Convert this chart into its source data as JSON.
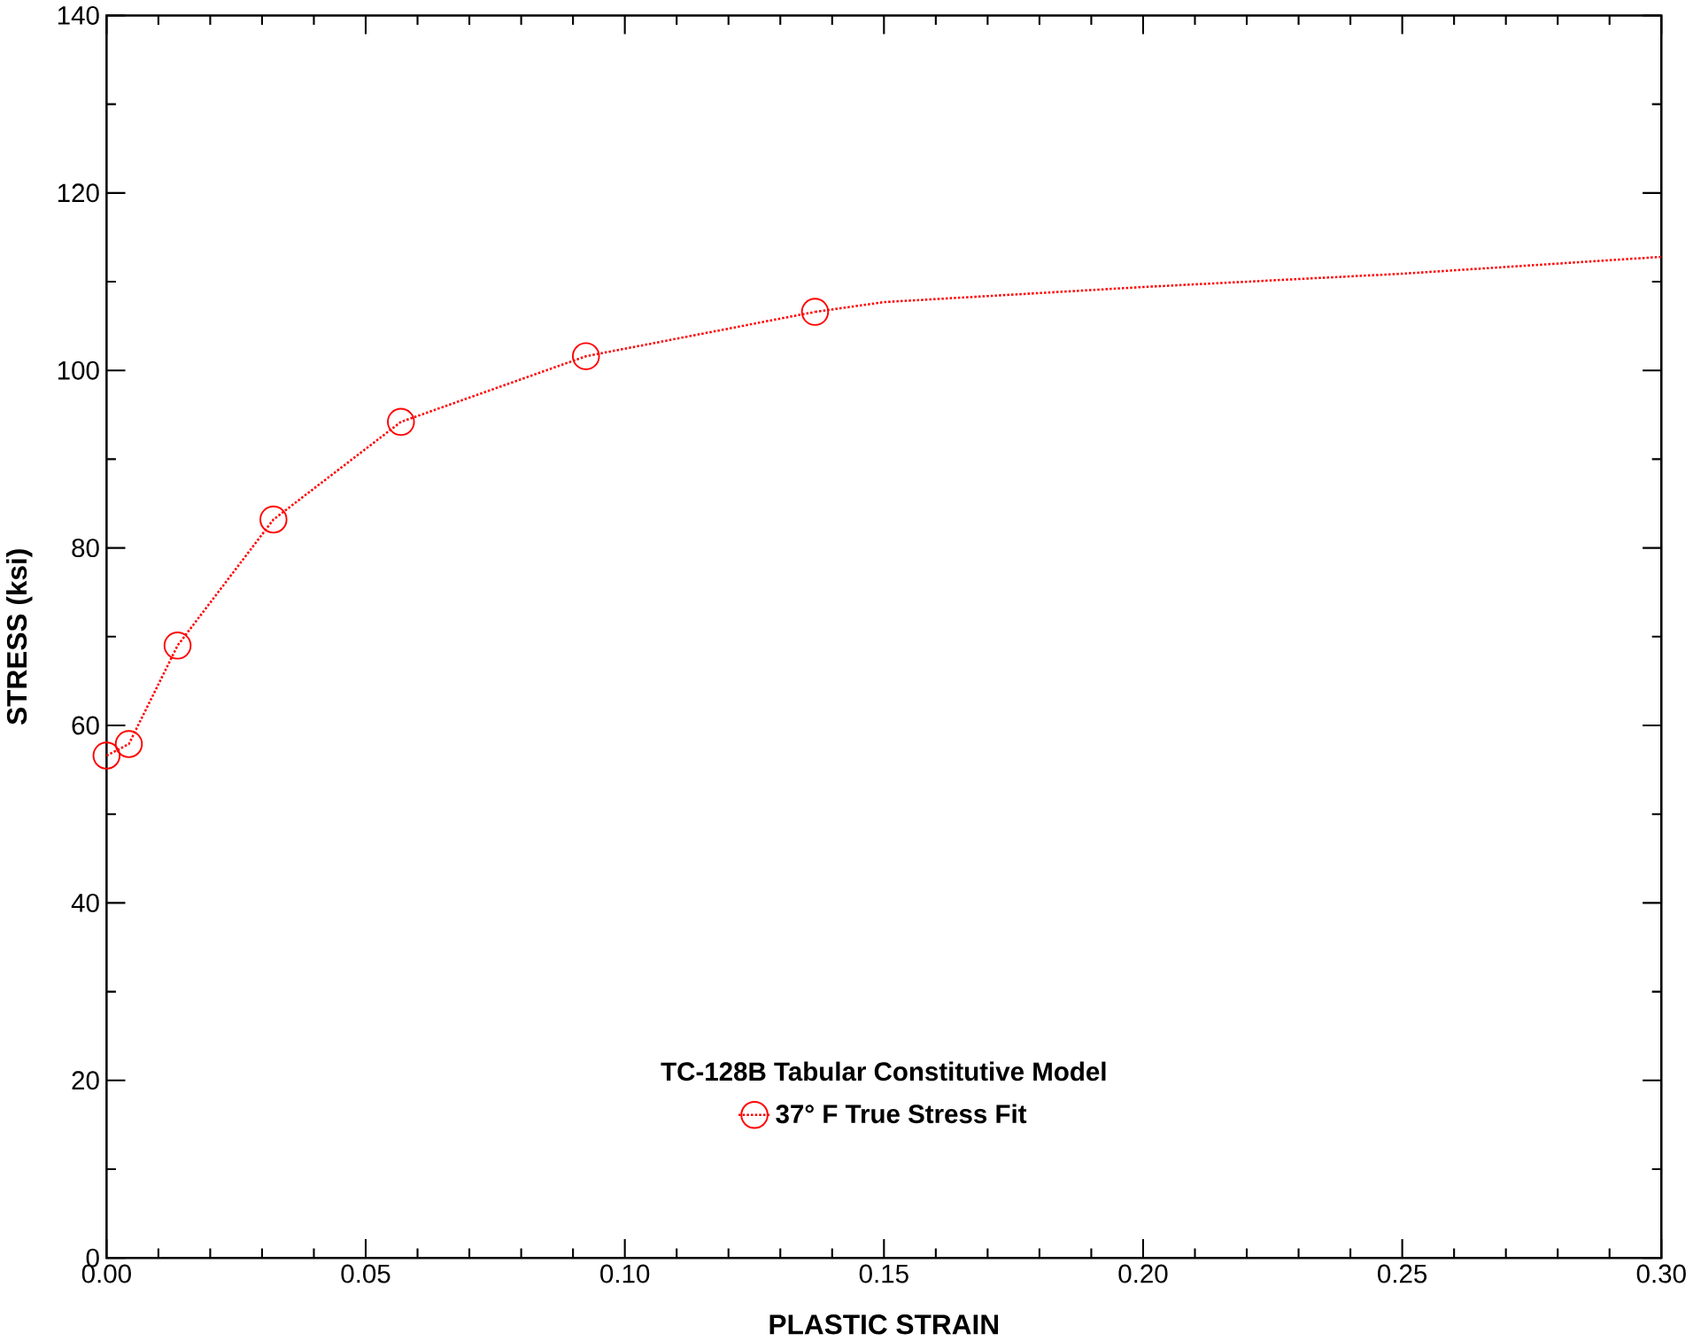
{
  "chart_data": {
    "type": "line",
    "xlabel": "PLASTIC STRAIN",
    "ylabel": "STRESS (ksi)",
    "legend_title": "TC-128B Tabular Constitutive Model",
    "series": [
      {
        "name": "37° F True Stress Fit",
        "color": "#ff0000",
        "x": [
          0,
          0.0043,
          0.0137,
          0.0322,
          0.0568,
          0.0925,
          0.1367
        ],
        "values": [
          56.6,
          57.9,
          69.0,
          83.2,
          94.2,
          101.6,
          106.6
        ]
      },
      {
        "color": "#ff0000",
        "marker": "none",
        "x": [
          0.1367,
          0.15,
          0.2,
          0.25,
          0.3
        ],
        "values": [
          106.6,
          107.7,
          109.4,
          110.9,
          112.8
        ]
      }
    ],
    "xlim": [
      0,
      0.3
    ],
    "ylim": [
      0,
      140
    ],
    "xticks": [
      {
        "value": 0,
        "label": "0.00"
      },
      {
        "value": 0.05,
        "label": "0.05"
      },
      {
        "value": 0.1,
        "label": "0.10"
      },
      {
        "value": 0.15,
        "label": "0.15"
      },
      {
        "value": 0.2,
        "label": "0.20"
      },
      {
        "value": 0.25,
        "label": "0.25"
      },
      {
        "value": 0.3,
        "label": "0.30"
      }
    ],
    "yticks": [
      0,
      20,
      40,
      60,
      80,
      100,
      120,
      140
    ],
    "grid": false,
    "legend": "bottom",
    "marker": "circle",
    "line_style": "dotted"
  }
}
